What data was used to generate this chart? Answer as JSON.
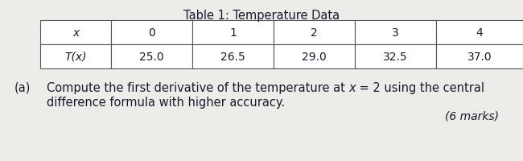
{
  "title": "Table 1: Temperature Data",
  "col_headers": [
    "x",
    "0",
    "1",
    "2",
    "3",
    "4"
  ],
  "row_label": "T(x)",
  "row_values": [
    "25.0",
    "26.5",
    "29.0",
    "32.5",
    "37.0"
  ],
  "question_label": "(a)",
  "question_line1_pre": "Compute the first derivative of the temperature at ",
  "question_line1_italic": "x",
  "question_line1_post": " = 2 using the central",
  "question_line2": "difference formula with higher accuracy.",
  "marks_text": "(6 marks)",
  "bg_color": "#eeece9",
  "text_color": "#1a1a2e",
  "table_edge_color": "#555555",
  "font_size_title": 10.5,
  "font_size_table": 10,
  "font_size_question": 10.5,
  "font_size_marks": 10
}
